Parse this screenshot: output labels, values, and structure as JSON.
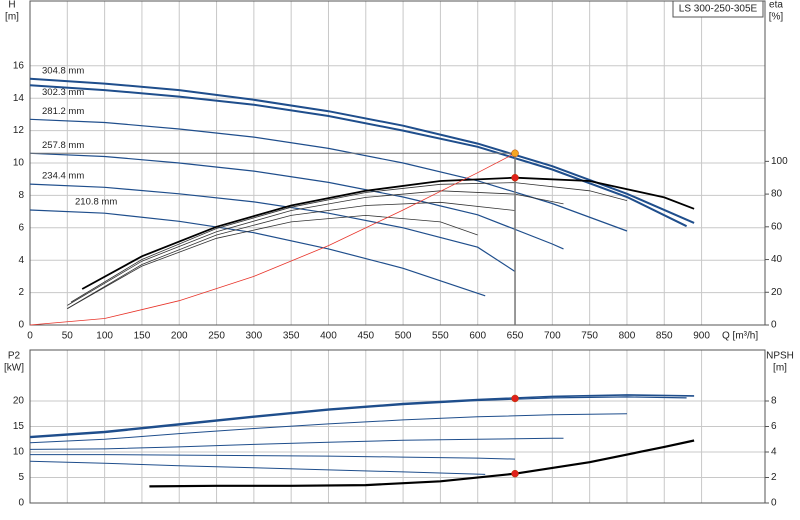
{
  "chart_data": [
    {
      "type": "line",
      "title": "LS 300-250-305E",
      "xlabel": "Q [m³/h]",
      "ylabel": "H",
      "yunit": "[m]",
      "y2label": "eta",
      "y2unit": "[%]",
      "xlim": [
        0,
        985
      ],
      "xticks": [
        0,
        50,
        100,
        150,
        200,
        250,
        300,
        350,
        400,
        450,
        500,
        550,
        600,
        650,
        700,
        750,
        800,
        850,
        900
      ],
      "xtick_labels": true,
      "ylim": [
        0,
        20
      ],
      "yticks": [
        0,
        2,
        4,
        6,
        8,
        10,
        12,
        14,
        16
      ],
      "y2lim": [
        0,
        198
      ],
      "y2ticks": [
        0,
        20,
        40,
        60,
        80,
        100
      ],
      "grid": true,
      "series": [
        {
          "name": "304.8 mm",
          "color": "#1f4e8c",
          "width": 2,
          "x": [
            0,
            100,
            200,
            300,
            400,
            500,
            600,
            700,
            800,
            890
          ],
          "values": [
            15.2,
            14.9,
            14.5,
            13.9,
            13.2,
            12.3,
            11.2,
            9.8,
            8.1,
            6.3
          ]
        },
        {
          "name": "302.3 mm",
          "color": "#1f4e8c",
          "width": 2,
          "x": [
            0,
            100,
            200,
            300,
            400,
            500,
            600,
            700,
            800,
            880
          ],
          "values": [
            14.8,
            14.5,
            14.1,
            13.6,
            12.9,
            12.0,
            11.0,
            9.6,
            7.9,
            6.1
          ]
        },
        {
          "name": "281.2 mm",
          "color": "#1f4e8c",
          "width": 1.2,
          "x": [
            0,
            100,
            200,
            300,
            400,
            500,
            600,
            700,
            800
          ],
          "values": [
            12.7,
            12.5,
            12.1,
            11.6,
            10.9,
            10.0,
            8.9,
            7.5,
            5.8
          ]
        },
        {
          "name": "257.8 mm",
          "color": "#1f4e8c",
          "width": 1.2,
          "x": [
            0,
            100,
            200,
            300,
            400,
            500,
            600,
            700,
            715
          ],
          "values": [
            10.6,
            10.4,
            10.0,
            9.5,
            8.8,
            7.9,
            6.8,
            5.0,
            4.7
          ]
        },
        {
          "name": "234.4 mm",
          "color": "#1f4e8c",
          "width": 1.2,
          "x": [
            0,
            100,
            200,
            300,
            400,
            500,
            600,
            650
          ],
          "values": [
            8.7,
            8.5,
            8.1,
            7.6,
            6.9,
            6.0,
            4.8,
            3.3
          ]
        },
        {
          "name": "210.8 mm",
          "color": "#1f4e8c",
          "width": 1.2,
          "x": [
            0,
            100,
            200,
            300,
            400,
            500,
            610
          ],
          "values": [
            7.1,
            6.9,
            6.4,
            5.7,
            4.7,
            3.5,
            1.8
          ]
        },
        {
          "axis": "y2",
          "color": "#000000",
          "width": 1.8,
          "x": [
            70,
            150,
            250,
            350,
            450,
            550,
            650,
            750,
            850,
            890
          ],
          "values": [
            22,
            42,
            60,
            73,
            82,
            88,
            90,
            88,
            78,
            71
          ]
        },
        {
          "axis": "y2",
          "color": "#333333",
          "width": 0.8,
          "x": [
            55,
            150,
            250,
            350,
            450,
            550,
            650,
            750,
            800
          ],
          "values": [
            14,
            40,
            59,
            72,
            81,
            86,
            87,
            82,
            76
          ]
        },
        {
          "axis": "y2",
          "color": "#333333",
          "width": 0.8,
          "x": [
            50,
            150,
            250,
            350,
            450,
            550,
            650,
            715
          ],
          "values": [
            12,
            39,
            57,
            70,
            78,
            82,
            80,
            74
          ]
        },
        {
          "axis": "y2",
          "color": "#333333",
          "width": 0.8,
          "x": [
            50,
            150,
            250,
            350,
            450,
            550,
            650
          ],
          "values": [
            10,
            37,
            55,
            67,
            73,
            75,
            70
          ]
        },
        {
          "axis": "y2",
          "color": "#333333",
          "width": 0.8,
          "x": [
            50,
            150,
            250,
            350,
            450,
            550,
            600
          ],
          "values": [
            10,
            36,
            53,
            63,
            67,
            63,
            55
          ]
        },
        {
          "color": "#e8342a",
          "width": 0.8,
          "x": [
            0,
            100,
            200,
            300,
            400,
            500,
            600,
            650
          ],
          "values": [
            0,
            0.4,
            1.5,
            3.0,
            4.9,
            7.1,
            9.4,
            10.6
          ]
        },
        {
          "color": "#f5a623",
          "marker": true,
          "guides": true,
          "x": [
            650
          ],
          "values": [
            10.6
          ]
        },
        {
          "axis": "y2",
          "color": "#e0201b",
          "marker": true,
          "x": [
            650
          ],
          "values": [
            90
          ]
        }
      ]
    },
    {
      "type": "line",
      "ylabel": "P2",
      "yunit": "[kW]",
      "y2label": "NPSH",
      "y2unit": "[m]",
      "xlim": [
        0,
        985
      ],
      "xticks": [
        0,
        50,
        100,
        150,
        200,
        250,
        300,
        350,
        400,
        450,
        500,
        550,
        600,
        650,
        700,
        750,
        800,
        850,
        900
      ],
      "xtick_labels": false,
      "ylim": [
        0,
        30
      ],
      "yticks": [
        0,
        5,
        10,
        15,
        20
      ],
      "y2lim": [
        0,
        12
      ],
      "y2ticks": [
        0,
        2,
        4,
        6,
        8
      ],
      "grid": true,
      "series": [
        {
          "color": "#1f4e8c",
          "width": 1.6,
          "x": [
            0,
            100,
            200,
            300,
            400,
            500,
            600,
            700,
            800,
            890
          ],
          "values": [
            13,
            14,
            15.5,
            17,
            18.4,
            19.5,
            20.3,
            20.9,
            21.2,
            21
          ]
        },
        {
          "color": "#1f4e8c",
          "width": 1.2,
          "x": [
            0,
            100,
            200,
            300,
            400,
            500,
            600,
            700,
            800,
            880
          ],
          "values": [
            12.8,
            13.8,
            15.3,
            16.8,
            18.2,
            19.3,
            20.1,
            20.6,
            20.8,
            20.6
          ]
        },
        {
          "color": "#1f4e8c",
          "width": 1,
          "x": [
            0,
            100,
            200,
            300,
            400,
            500,
            600,
            700,
            800
          ],
          "values": [
            11.8,
            12.5,
            13.6,
            14.6,
            15.5,
            16.3,
            16.9,
            17.3,
            17.5
          ]
        },
        {
          "color": "#1f4e8c",
          "width": 1,
          "x": [
            0,
            100,
            200,
            300,
            400,
            500,
            600,
            700,
            715
          ],
          "values": [
            10.5,
            10.6,
            11.0,
            11.5,
            11.9,
            12.3,
            12.5,
            12.7,
            12.7
          ]
        },
        {
          "color": "#1f4e8c",
          "width": 1,
          "x": [
            0,
            100,
            200,
            300,
            400,
            500,
            600,
            650
          ],
          "values": [
            9.5,
            9.5,
            9.4,
            9.3,
            9.2,
            9.0,
            8.8,
            8.6
          ]
        },
        {
          "color": "#1f4e8c",
          "width": 1,
          "x": [
            0,
            100,
            200,
            300,
            400,
            500,
            610
          ],
          "values": [
            8.2,
            7.8,
            7.3,
            6.9,
            6.5,
            6.1,
            5.6
          ]
        },
        {
          "axis": "y2",
          "color": "#000000",
          "width": 2.2,
          "x": [
            160,
            250,
            350,
            450,
            550,
            650,
            750,
            850,
            890
          ],
          "values": [
            1.3,
            1.35,
            1.35,
            1.4,
            1.7,
            2.3,
            3.2,
            4.4,
            4.9
          ]
        },
        {
          "color": "#e0201b",
          "marker": true,
          "x": [
            650
          ],
          "values": [
            20.5
          ]
        },
        {
          "axis": "y2",
          "color": "#e0201b",
          "marker": true,
          "x": [
            650
          ],
          "values": [
            2.3
          ]
        }
      ]
    }
  ]
}
